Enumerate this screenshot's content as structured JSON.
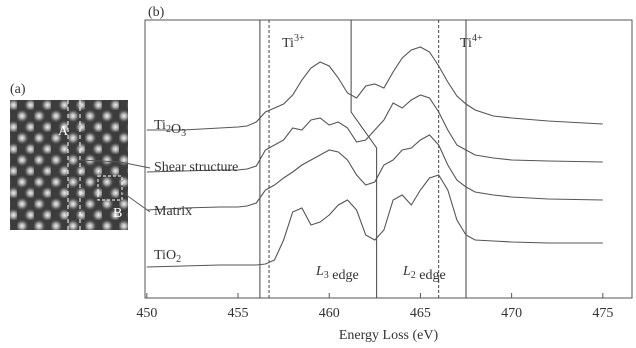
{
  "panel_a": {
    "label": "(a)",
    "marker_a": "A",
    "marker_b": "B"
  },
  "chart_data": {
    "type": "line",
    "panel_label": "(b)",
    "x_label": "Energy Loss (eV)",
    "x": [
      450,
      452,
      454,
      455,
      455.5,
      456,
      456.5,
      457,
      457.5,
      458,
      458.5,
      459,
      459.5,
      460,
      460.5,
      461,
      461.5,
      462,
      462.5,
      463,
      463.5,
      464,
      464.5,
      465,
      465.5,
      466,
      466.5,
      467,
      467.5,
      468,
      469,
      470,
      472,
      475
    ],
    "series": [
      {
        "name": "Ti2O3",
        "color": "#555555",
        "values": [
          168,
          168,
          170,
          171,
          172,
          176,
          186,
          190,
          194,
          203,
          218,
          230,
          236,
          232,
          220,
          205,
          200,
          212,
          214,
          210,
          226,
          240,
          248,
          251,
          246,
          232,
          216,
          202,
          194,
          188,
          182,
          180,
          177,
          174
        ]
      },
      {
        "name": "Shear structure",
        "color": "#555555",
        "values": [
          126,
          127,
          128,
          128,
          129,
          132,
          148,
          153,
          158,
          170,
          168,
          178,
          180,
          173,
          176,
          170,
          156,
          158,
          168,
          178,
          195,
          190,
          198,
          203,
          200,
          186,
          168,
          153,
          148,
          143,
          140,
          138,
          137,
          136
        ]
      },
      {
        "name": "Matrix",
        "color": "#555555",
        "values": [
          88,
          90,
          91,
          91,
          92,
          95,
          108,
          113,
          120,
          126,
          133,
          138,
          143,
          148,
          146,
          138,
          123,
          113,
          116,
          133,
          138,
          148,
          150,
          158,
          163,
          153,
          133,
          118,
          111,
          106,
          103,
          101,
          99,
          98
        ]
      },
      {
        "name": "TiO2",
        "color": "#555555",
        "values": [
          31,
          32,
          33,
          33,
          33,
          33,
          34,
          38,
          58,
          86,
          90,
          73,
          76,
          83,
          93,
          98,
          88,
          63,
          58,
          68,
          98,
          103,
          93,
          108,
          120,
          123,
          108,
          78,
          63,
          58,
          57,
          56,
          55,
          55
        ]
      }
    ],
    "xlim": [
      449.9,
      476.6
    ],
    "xticks": [
      450,
      455,
      460,
      465,
      470,
      475
    ],
    "ylim": [
      0,
      278
    ],
    "guides": [
      {
        "x": [
          456.2,
          456.2
        ],
        "y": [
          278,
          0
        ],
        "dashed": false
      },
      {
        "x": [
          456.7,
          456.7
        ],
        "y": [
          278,
          0
        ],
        "dashed": true
      },
      {
        "x": [
          461.2,
          461.2,
          462.6,
          462.6
        ],
        "y": [
          278,
          186,
          150,
          0
        ],
        "dashed": false
      },
      {
        "x": [
          466.0,
          466.0
        ],
        "y": [
          278,
          0
        ],
        "dashed": true
      },
      {
        "x": [
          467.5,
          467.5
        ],
        "y": [
          278,
          0
        ],
        "dashed": false
      }
    ],
    "annotations": [
      "Ti3+",
      "Ti4+",
      "L3 edge",
      "L2 edge"
    ]
  }
}
